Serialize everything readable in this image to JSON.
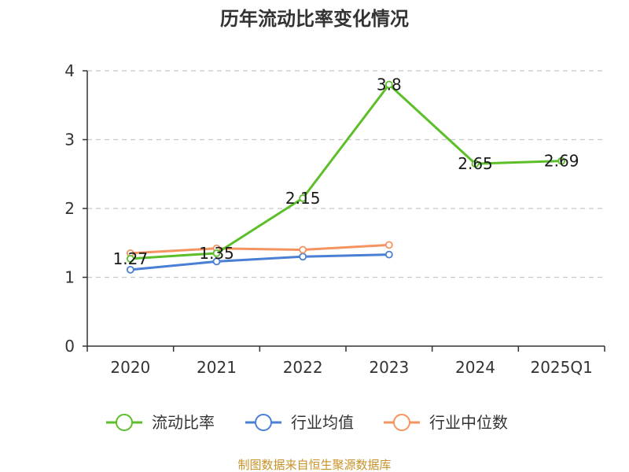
{
  "chart_data": {
    "type": "line",
    "title": "历年流动比率变化情况",
    "categories": [
      "2020",
      "2021",
      "2022",
      "2023",
      "2024",
      "2025Q1"
    ],
    "ylim": [
      0,
      4
    ],
    "yticks": [
      0,
      1,
      2,
      3,
      4
    ],
    "grid": true,
    "legend_position": "bottom",
    "series": [
      {
        "name": "流动比率",
        "color": "#5cbf2a",
        "values": [
          1.27,
          1.35,
          2.15,
          3.8,
          2.65,
          2.69
        ],
        "show_labels": true
      },
      {
        "name": "行业均值",
        "color": "#4a7fd6",
        "values": [
          1.11,
          1.23,
          1.3,
          1.33,
          null,
          null
        ],
        "show_labels": false
      },
      {
        "name": "行业中位数",
        "color": "#f59461",
        "values": [
          1.35,
          1.42,
          1.4,
          1.47,
          null,
          null
        ],
        "show_labels": false
      }
    ],
    "source": "制图数据来自恒生聚源数据库"
  }
}
